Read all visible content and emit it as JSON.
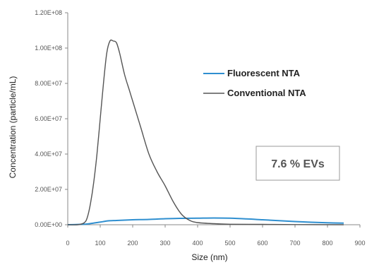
{
  "chart_data": {
    "type": "line",
    "xlabel": "Size (nm)",
    "ylabel": "Concentration (particle/mL)",
    "xlim": [
      0,
      900
    ],
    "ylim": [
      0,
      120000000
    ],
    "x_ticks": [
      "0",
      "100",
      "200",
      "300",
      "400",
      "500",
      "600",
      "700",
      "800",
      "900"
    ],
    "y_ticks": [
      "0.00E+00",
      "2.00E+07",
      "4.00E+07",
      "6.00E+07",
      "8.00E+07",
      "1.00E+08",
      "1.20E+08"
    ],
    "grid": false,
    "legend_position": "upper-right",
    "annotation": "7.6 % EVs",
    "series": [
      {
        "name": "Fluorescent NTA",
        "color": "#2f8fd0",
        "x": [
          0,
          25,
          50,
          75,
          100,
          125,
          150,
          175,
          200,
          250,
          300,
          350,
          400,
          450,
          500,
          550,
          600,
          650,
          700,
          750,
          800,
          850
        ],
        "y": [
          0,
          100000,
          300000,
          800000,
          1500000,
          2200000,
          2400000,
          2600000,
          2800000,
          3000000,
          3400000,
          3600000,
          3700000,
          3800000,
          3700000,
          3300000,
          2800000,
          2300000,
          1800000,
          1400000,
          1100000,
          900000
        ]
      },
      {
        "name": "Conventional NTA",
        "color": "#555555",
        "x": [
          0,
          30,
          50,
          60,
          70,
          80,
          90,
          100,
          110,
          120,
          130,
          140,
          150,
          160,
          175,
          190,
          200,
          225,
          250,
          275,
          300,
          325,
          350,
          375,
          400,
          450,
          500,
          600,
          700,
          850
        ],
        "y": [
          0,
          0,
          1000000,
          4000000,
          12000000,
          24000000,
          40000000,
          60000000,
          80000000,
          97000000,
          104000000,
          104000000,
          103000000,
          97000000,
          85000000,
          76000000,
          70000000,
          55000000,
          40000000,
          30000000,
          22000000,
          13000000,
          6000000,
          2500000,
          1200000,
          600000,
          300000,
          200000,
          100000,
          0
        ]
      }
    ]
  }
}
